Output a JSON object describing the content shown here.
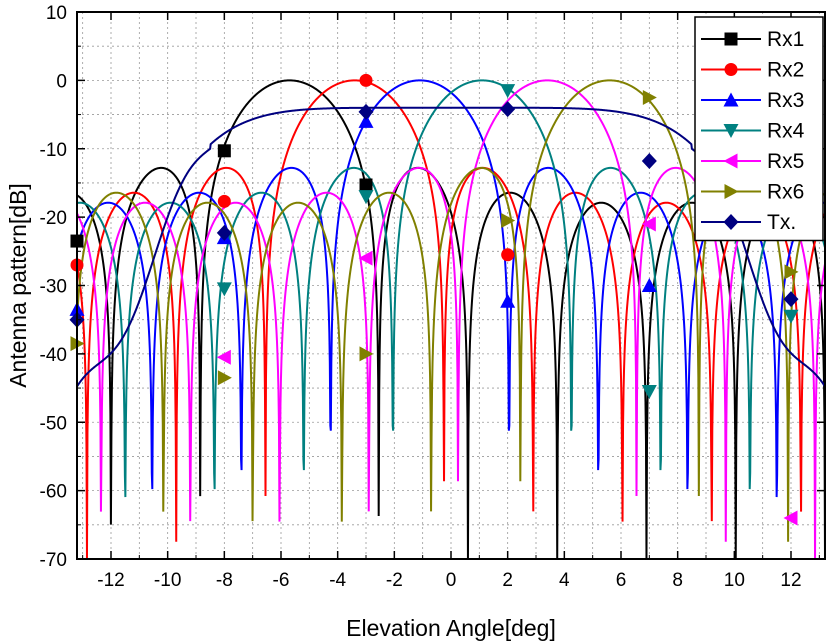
{
  "chart_data": {
    "type": "line",
    "title": "",
    "xlabel": "Elevation Angle[deg]",
    "ylabel": "Antenna pattern[dB]",
    "xlim": [
      -13.2,
      13.2
    ],
    "ylim": [
      -70,
      10
    ],
    "x_ticks": [
      -12,
      -10,
      -8,
      -6,
      -4,
      -2,
      0,
      2,
      4,
      6,
      8,
      10,
      12
    ],
    "x_tick_labels": [
      "-12",
      "-10",
      "-8",
      "-6",
      "-4",
      "-2",
      "0",
      "2",
      "4",
      "6",
      "8",
      "10",
      "12"
    ],
    "y_ticks": [
      10,
      0,
      -10,
      -20,
      -30,
      -40,
      -50,
      -60,
      -70
    ],
    "y_tick_labels": [
      "10",
      "0",
      "-10",
      "-20",
      "-30",
      "-40",
      "-50",
      "-60",
      "-70"
    ],
    "grid": true,
    "legend_position": "top-right",
    "series": [
      {
        "name": "Rx1",
        "color": "#000000",
        "marker": "square",
        "peak_angle": -5.7,
        "peak_db": 0,
        "lobes": 8,
        "marker_points": [
          [
            -13.2,
            -23.5
          ],
          [
            -8.0,
            -10.3
          ],
          [
            -3.0,
            -15.3
          ]
        ]
      },
      {
        "name": "Rx2",
        "color": "#ff0000",
        "marker": "circle",
        "peak_angle": -3.4,
        "peak_db": 0,
        "lobes": 8,
        "marker_points": [
          [
            -13.2,
            -27.0
          ],
          [
            -8.0,
            -17.7
          ],
          [
            -3.0,
            0.0
          ],
          [
            2.0,
            -25.5
          ]
        ]
      },
      {
        "name": "Rx3",
        "color": "#0000ff",
        "marker": "triangle-up",
        "peak_angle": -1.1,
        "peak_db": 0,
        "lobes": 8,
        "marker_points": [
          [
            -13.2,
            -33.5
          ],
          [
            -8.0,
            -23.0
          ],
          [
            -3.0,
            -6.0
          ],
          [
            2.0,
            -32.3
          ],
          [
            7.0,
            -30.0
          ]
        ]
      },
      {
        "name": "Rx4",
        "color": "#008080",
        "marker": "triangle-down",
        "peak_angle": 1.1,
        "peak_db": 0,
        "lobes": 8,
        "marker_points": [
          [
            -8.0,
            -30.5
          ],
          [
            -3.0,
            -17.0
          ],
          [
            2.0,
            -1.5
          ],
          [
            7.0,
            -45.5
          ],
          [
            12.0,
            -34.5
          ]
        ]
      },
      {
        "name": "Rx5",
        "color": "#ff00ff",
        "marker": "triangle-left",
        "peak_angle": 3.4,
        "peak_db": 0,
        "lobes": 8,
        "marker_points": [
          [
            -8.0,
            -40.5
          ],
          [
            -3.0,
            -26.0
          ],
          [
            7.0,
            -21.0
          ],
          [
            12.0,
            -64.0
          ]
        ]
      },
      {
        "name": "Rx6",
        "color": "#808000",
        "marker": "triangle-right",
        "peak_angle": 5.6,
        "peak_db": 0,
        "lobes": 8,
        "marker_points": [
          [
            -13.2,
            -38.5
          ],
          [
            -8.0,
            -43.5
          ],
          [
            -3.0,
            -40.0
          ],
          [
            2.0,
            -20.5
          ],
          [
            7.0,
            -2.5
          ],
          [
            12.0,
            -28.0
          ]
        ]
      },
      {
        "name": "Tx.",
        "color": "#000080",
        "marker": "diamond",
        "flat_top_db": -4.0,
        "edge_angles": [
          -8.5,
          8.5
        ],
        "marker_points": [
          [
            -13.2,
            -35.0
          ],
          [
            -8.0,
            -22.3
          ],
          [
            -3.0,
            -4.6
          ],
          [
            2.0,
            -4.2
          ],
          [
            7.0,
            -11.8
          ],
          [
            12.0,
            -32.0
          ]
        ]
      }
    ]
  }
}
